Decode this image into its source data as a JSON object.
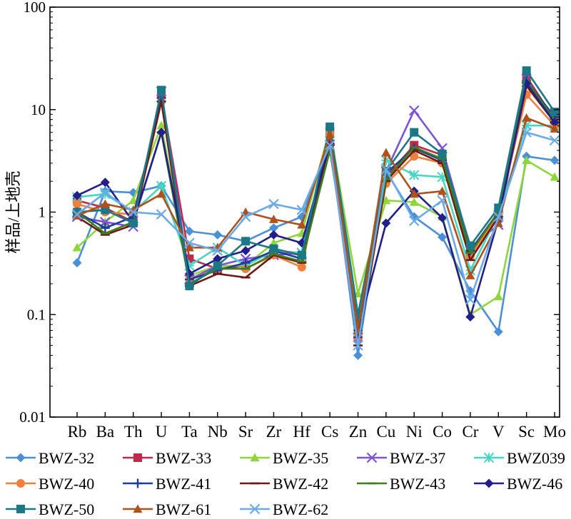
{
  "chart_data": {
    "type": "line",
    "ylabel": "样品/上地壳",
    "yscale": "log",
    "ylim": [
      0.01,
      100
    ],
    "y_ticks": [
      "0.01",
      "0.1",
      "1",
      "10",
      "100"
    ],
    "legend_position": "bottom",
    "grid": false,
    "categories": [
      "Rb",
      "Ba",
      "Th",
      "U",
      "Ta",
      "Nb",
      "Sr",
      "Zr",
      "Hf",
      "Cs",
      "Zn",
      "Cu",
      "Ni",
      "Co",
      "Cr",
      "V",
      "Sc",
      "Mo"
    ],
    "series": [
      {
        "name": "BWZ-32",
        "color": "#4a90d9",
        "marker": "diamond",
        "values": [
          0.32,
          1.6,
          1.55,
          1.8,
          0.65,
          0.6,
          0.52,
          0.7,
          0.9,
          5.0,
          0.04,
          2.5,
          0.9,
          0.57,
          0.17,
          0.068,
          3.5,
          3.2
        ]
      },
      {
        "name": "BWZ-33",
        "color": "#c0294a",
        "marker": "square",
        "values": [
          1.3,
          1.1,
          0.8,
          14.0,
          0.35,
          0.28,
          0.3,
          0.42,
          0.38,
          6.0,
          0.06,
          2.2,
          4.5,
          3.6,
          0.4,
          1.0,
          21.0,
          8.0
        ]
      },
      {
        "name": "BWZ-35",
        "color": "#8ed63a",
        "marker": "triangle",
        "values": [
          0.45,
          0.8,
          1.3,
          7.0,
          0.24,
          0.3,
          0.3,
          0.5,
          0.62,
          6.5,
          0.16,
          1.3,
          1.25,
          0.9,
          0.1,
          0.15,
          3.2,
          2.2
        ]
      },
      {
        "name": "BWZ-37",
        "color": "#7b52d9",
        "marker": "x",
        "values": [
          0.9,
          0.8,
          0.72,
          15.0,
          0.22,
          0.3,
          0.35,
          0.38,
          0.4,
          4.2,
          0.06,
          2.5,
          9.8,
          4.2,
          0.45,
          0.75,
          20.0,
          7.5
        ]
      },
      {
        "name": "BWZ039",
        "color": "#47d6c2",
        "marker": "asterisk",
        "values": [
          1.4,
          1.5,
          1.0,
          1.8,
          0.3,
          0.45,
          0.3,
          0.42,
          0.4,
          6.0,
          0.07,
          3.2,
          2.3,
          2.2,
          0.27,
          0.95,
          7.0,
          7.0
        ]
      },
      {
        "name": "BWZ-40",
        "color": "#f07f3c",
        "marker": "circle",
        "values": [
          1.2,
          1.0,
          0.95,
          12.0,
          0.22,
          0.28,
          0.28,
          0.38,
          0.29,
          6.0,
          0.06,
          1.9,
          3.5,
          3.0,
          0.37,
          0.95,
          14.0,
          7.0
        ]
      },
      {
        "name": "BWZ-41",
        "color": "#1f3c9e",
        "marker": "plus",
        "values": [
          1.0,
          0.7,
          0.9,
          13.0,
          0.22,
          0.27,
          0.32,
          0.42,
          0.35,
          5.0,
          0.06,
          2.4,
          4.2,
          3.2,
          0.42,
          1.0,
          19.0,
          8.5
        ]
      },
      {
        "name": "BWZ-42",
        "color": "#6e1a14",
        "marker": "dash",
        "values": [
          0.9,
          0.6,
          0.75,
          12.0,
          0.19,
          0.25,
          0.23,
          0.38,
          0.32,
          4.5,
          0.05,
          2.0,
          4.0,
          3.0,
          0.34,
          0.9,
          17.0,
          7.5
        ]
      },
      {
        "name": "BWZ-43",
        "color": "#3e7d1e",
        "marker": "dash",
        "values": [
          1.0,
          0.62,
          0.8,
          6.0,
          0.2,
          0.28,
          0.28,
          0.39,
          0.33,
          4.0,
          0.08,
          2.1,
          4.3,
          3.3,
          0.4,
          1.0,
          19.0,
          8.0
        ]
      },
      {
        "name": "BWZ-46",
        "color": "#221f8a",
        "marker": "diamond",
        "values": [
          1.45,
          1.95,
          0.8,
          6.0,
          0.25,
          0.35,
          0.42,
          0.6,
          0.5,
          4.7,
          0.07,
          0.78,
          1.6,
          0.88,
          0.095,
          0.85,
          18.0,
          7.5
        ]
      },
      {
        "name": "BWZ-50",
        "color": "#1c7886",
        "marker": "square",
        "values": [
          1.0,
          1.05,
          0.78,
          15.5,
          0.19,
          0.3,
          0.52,
          0.44,
          0.38,
          6.8,
          0.1,
          2.5,
          6.0,
          3.7,
          0.47,
          1.1,
          24.0,
          9.5
        ]
      },
      {
        "name": "BWZ-61",
        "color": "#b0501a",
        "marker": "triangle",
        "values": [
          0.92,
          1.2,
          1.05,
          1.5,
          0.45,
          0.45,
          1.0,
          0.85,
          0.75,
          5.7,
          0.07,
          3.8,
          1.5,
          1.6,
          0.24,
          0.78,
          8.3,
          6.5
        ]
      },
      {
        "name": "BWZ-62",
        "color": "#6aa9ea",
        "marker": "x",
        "values": [
          0.95,
          1.55,
          1.0,
          0.95,
          0.5,
          0.42,
          0.9,
          1.2,
          1.05,
          4.5,
          0.05,
          2.6,
          0.82,
          1.3,
          0.14,
          0.9,
          6.0,
          5.0
        ]
      }
    ]
  }
}
